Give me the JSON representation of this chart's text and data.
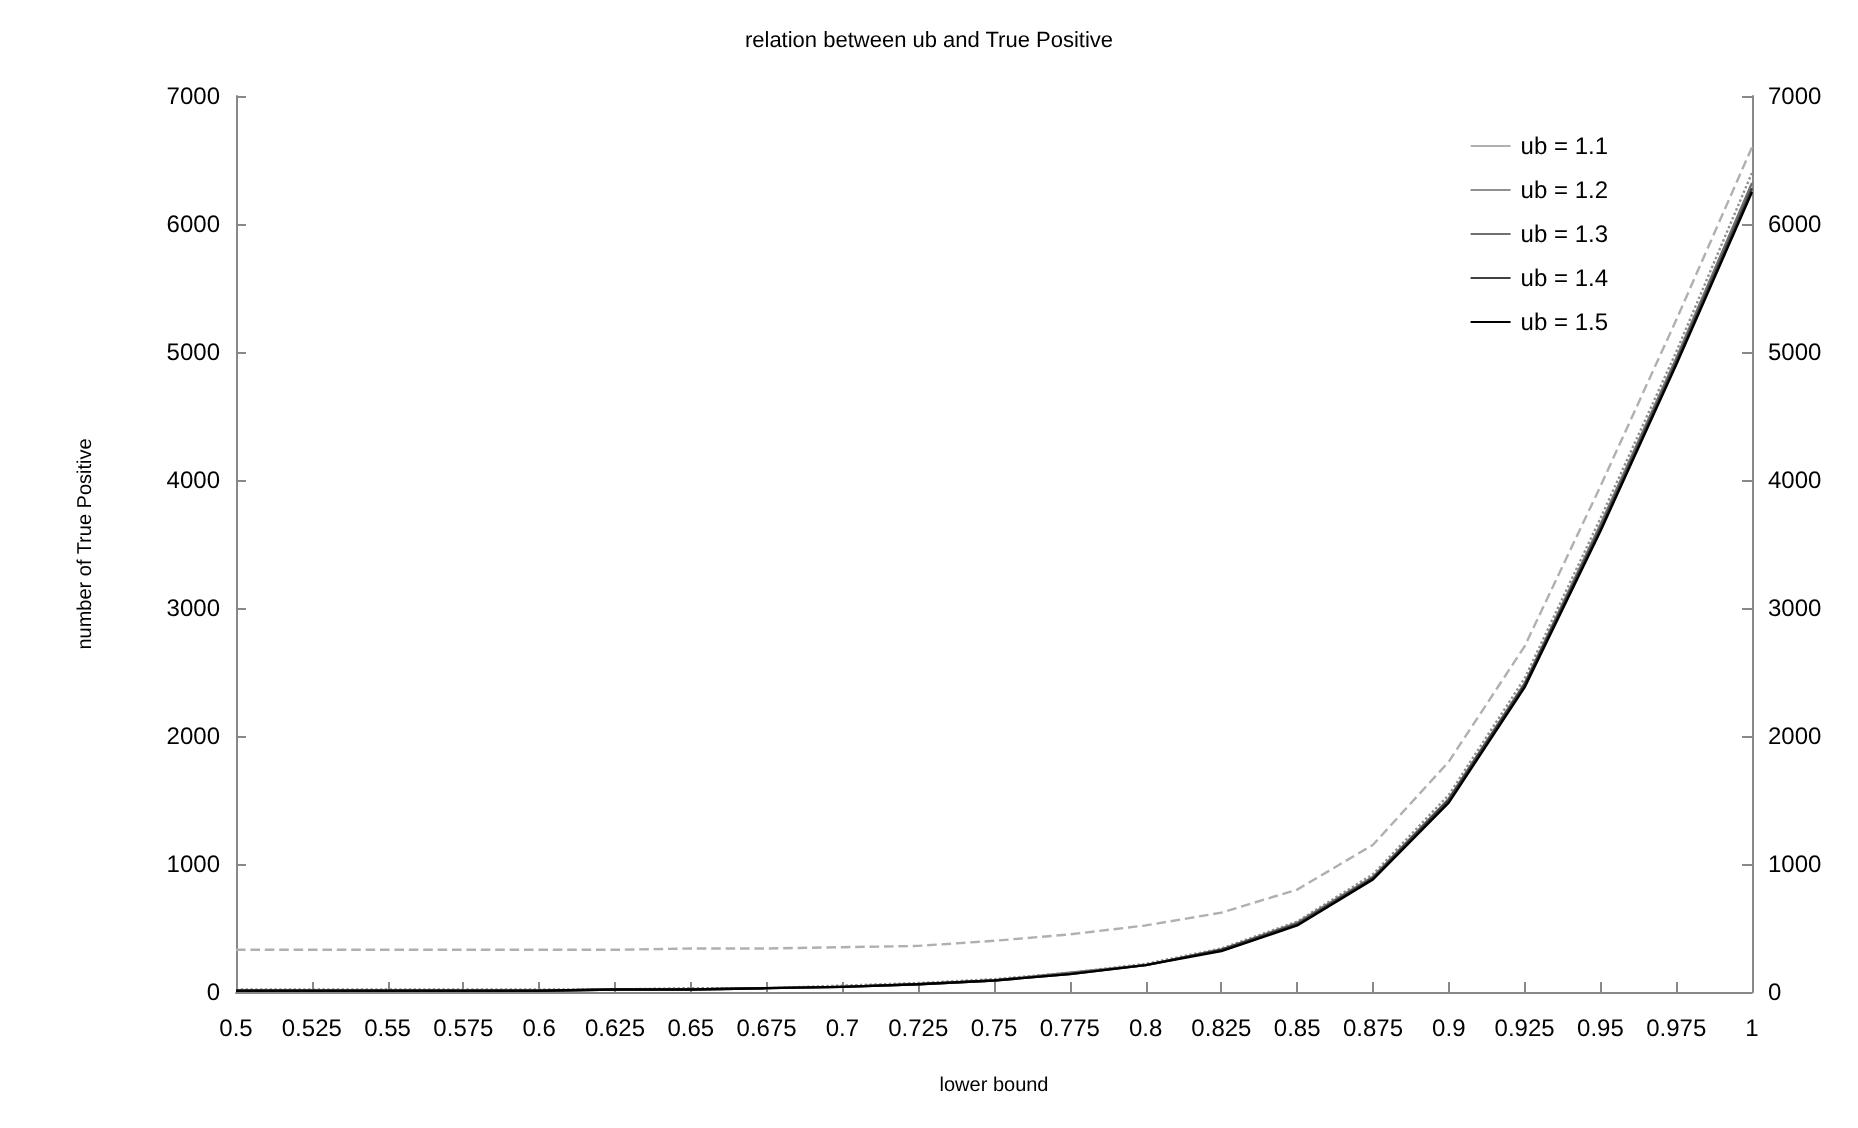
{
  "chart_data": {
    "type": "line",
    "title": "relation between ub and True Positive",
    "xlabel": "lower bound",
    "ylabel": "number of True Positive",
    "categories": [
      "0.5",
      "0.525",
      "0.55",
      "0.575",
      "0.6",
      "0.625",
      "0.65",
      "0.675",
      "0.7",
      "0.725",
      "0.75",
      "0.775",
      "0.8",
      "0.825",
      "0.85",
      "0.875",
      "0.9",
      "0.925",
      "0.95",
      "0.975",
      "1"
    ],
    "series": [
      {
        "name": "ub = 1.1",
        "color": "#b0b0b0",
        "line_style": "dashed",
        "values": [
          330,
          330,
          330,
          330,
          330,
          330,
          340,
          340,
          350,
          360,
          400,
          450,
          520,
          620,
          800,
          1150,
          1800,
          2700,
          3950,
          5250,
          6600
        ]
      },
      {
        "name": "ub = 1.2",
        "color": "#909090",
        "line_style": "dotted",
        "values": [
          20,
          20,
          20,
          20,
          20,
          20,
          30,
          30,
          50,
          70,
          100,
          150,
          220,
          340,
          550,
          920,
          1540,
          2450,
          3700,
          5000,
          6400
        ]
      },
      {
        "name": "ub = 1.3",
        "color": "#707070",
        "line_style": "solid",
        "values": [
          10,
          10,
          10,
          10,
          10,
          20,
          20,
          30,
          40,
          60,
          90,
          150,
          210,
          330,
          540,
          900,
          1510,
          2410,
          3650,
          4950,
          6320
        ]
      },
      {
        "name": "ub = 1.4",
        "color": "#404040",
        "line_style": "solid",
        "values": [
          10,
          10,
          10,
          10,
          10,
          20,
          20,
          30,
          40,
          60,
          90,
          140,
          210,
          330,
          530,
          890,
          1500,
          2400,
          3620,
          4920,
          6280
        ]
      },
      {
        "name": "ub = 1.5",
        "color": "#000000",
        "line_style": "solid",
        "values": [
          10,
          10,
          10,
          10,
          10,
          20,
          20,
          30,
          40,
          60,
          90,
          140,
          210,
          320,
          520,
          880,
          1480,
          2380,
          3600,
          4900,
          6250
        ]
      }
    ],
    "ylim": [
      0,
      7000
    ],
    "yticks": [
      0,
      1000,
      2000,
      3000,
      4000,
      5000,
      6000,
      7000
    ],
    "y2lim": [
      0,
      7000
    ],
    "y2ticks": [
      0,
      1000,
      2000,
      3000,
      4000,
      5000,
      6000,
      7000
    ],
    "grid": false,
    "legend": "top right",
    "marker": "none"
  }
}
